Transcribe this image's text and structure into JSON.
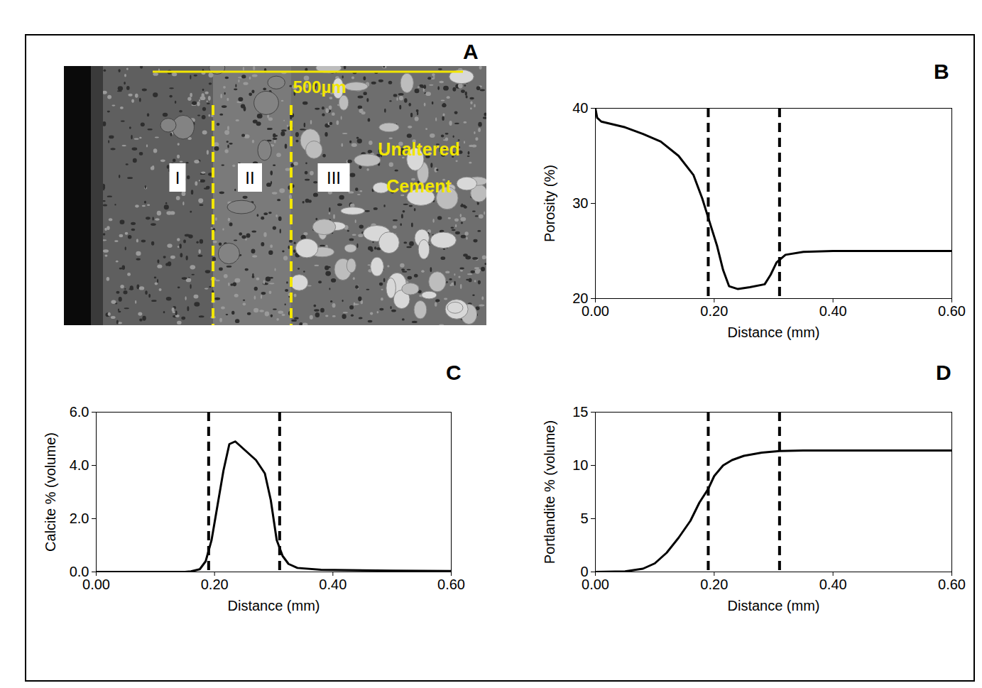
{
  "image_panel": {
    "letter": "A",
    "scale_bar": "500µm",
    "zones": [
      "I",
      "II",
      "III"
    ],
    "label": "Unaltered Cement"
  },
  "chart_data": [
    {
      "type": "line",
      "letter": "B",
      "x": [
        0,
        0.003,
        0.01,
        0.05,
        0.08,
        0.11,
        0.14,
        0.165,
        0.18,
        0.19,
        0.205,
        0.215,
        0.225,
        0.24,
        0.26,
        0.285,
        0.295,
        0.305,
        0.32,
        0.35,
        0.4,
        0.6
      ],
      "values": [
        40,
        39,
        38.6,
        38,
        37.3,
        36.5,
        35,
        33,
        30.5,
        28.5,
        25.5,
        23,
        21.3,
        21,
        21.2,
        21.5,
        22.5,
        23.8,
        24.6,
        24.9,
        25,
        25
      ],
      "xlim": [
        0,
        0.6
      ],
      "xticks": [
        0,
        0.2,
        0.4,
        0.6
      ],
      "ylim": [
        20,
        40
      ],
      "yticks": [
        20,
        30,
        40
      ],
      "xlabel": "Distance (mm)",
      "ylabel": "Porosity (%)",
      "color": "#000000",
      "line_style": "solid",
      "vlines": [
        0.19,
        0.31
      ]
    },
    {
      "type": "line",
      "letter": "C",
      "x": [
        0,
        0.15,
        0.16,
        0.175,
        0.185,
        0.195,
        0.205,
        0.215,
        0.225,
        0.235,
        0.25,
        0.27,
        0.285,
        0.295,
        0.305,
        0.315,
        0.325,
        0.34,
        0.38,
        0.5,
        0.6
      ],
      "values": [
        0,
        0,
        0.02,
        0.1,
        0.4,
        1.2,
        2.5,
        3.8,
        4.8,
        4.9,
        4.6,
        4.2,
        3.7,
        2.7,
        1.2,
        0.6,
        0.3,
        0.15,
        0.08,
        0.05,
        0.03
      ],
      "xlim": [
        0,
        0.6
      ],
      "xticks": [
        0,
        0.2,
        0.4,
        0.6
      ],
      "ylim": [
        0,
        6
      ],
      "yticks": [
        0,
        2,
        4,
        6
      ],
      "xlabel": "Distance (mm)",
      "ylabel": "Calcite % (volume)",
      "color": "#000000",
      "line_style": "solid",
      "vlines": [
        0.19,
        0.31
      ]
    },
    {
      "type": "line",
      "letter": "D",
      "x": [
        0,
        0.05,
        0.08,
        0.1,
        0.12,
        0.14,
        0.16,
        0.175,
        0.19,
        0.2,
        0.215,
        0.23,
        0.25,
        0.28,
        0.31,
        0.35,
        0.6
      ],
      "values": [
        0,
        0.05,
        0.3,
        0.8,
        1.8,
        3.2,
        4.8,
        6.5,
        7.8,
        9,
        10,
        10.5,
        10.9,
        11.2,
        11.35,
        11.4,
        11.4
      ],
      "xlim": [
        0,
        0.6
      ],
      "xticks": [
        0,
        0.2,
        0.4,
        0.6
      ],
      "ylim": [
        0,
        15
      ],
      "yticks": [
        0,
        5,
        10,
        15
      ],
      "xlabel": "Distance (mm)",
      "ylabel": "Portlandite % (volume)",
      "color": "#000000",
      "line_style": "solid",
      "vlines": [
        0.19,
        0.31
      ]
    }
  ]
}
